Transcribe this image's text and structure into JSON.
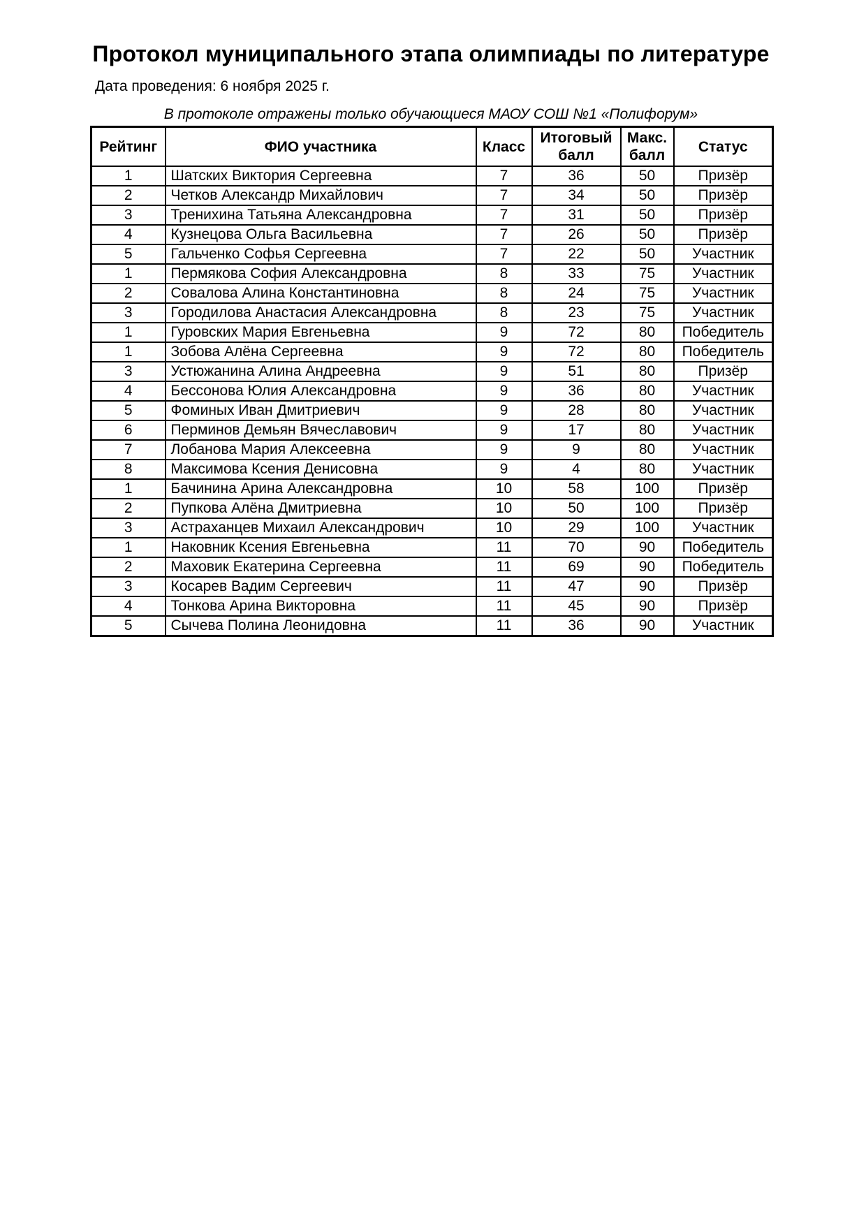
{
  "page": {
    "title": "Протокол муниципального этапа олимпиады по литературе",
    "date_line": "Дата проведения: 6 ноября 2025 г.",
    "note": "В протоколе отражены только обучающиеся МАОУ СОШ №1 «Полифорум»"
  },
  "table": {
    "columns": [
      "Рейтинг",
      "ФИО участника",
      "Класс",
      "Итоговый балл",
      "Макс. балл",
      "Статус"
    ],
    "rows": [
      [
        "1",
        "Шатских Виктория Сергеевна",
        "7",
        "36",
        "50",
        "Призёр"
      ],
      [
        "2",
        "Четков Александр Михайлович",
        "7",
        "34",
        "50",
        "Призёр"
      ],
      [
        "3",
        "Тренихина Татьяна Александровна",
        "7",
        "31",
        "50",
        "Призёр"
      ],
      [
        "4",
        "Кузнецова Ольга Васильевна",
        "7",
        "26",
        "50",
        "Призёр"
      ],
      [
        "5",
        "Гальченко Софья Сергеевна",
        "7",
        "22",
        "50",
        "Участник"
      ],
      [
        "1",
        "Пермякова София Александровна",
        "8",
        "33",
        "75",
        "Участник"
      ],
      [
        "2",
        "Совалова Алина Константиновна",
        "8",
        "24",
        "75",
        "Участник"
      ],
      [
        "3",
        "Городилова Анастасия Александровна",
        "8",
        "23",
        "75",
        "Участник"
      ],
      [
        "1",
        "Гуровских Мария Евгеньевна",
        "9",
        "72",
        "80",
        "Победитель"
      ],
      [
        "1",
        "Зобова Алёна Сергеевна",
        "9",
        "72",
        "80",
        "Победитель"
      ],
      [
        "3",
        "Устюжанина Алина Андреевна",
        "9",
        "51",
        "80",
        "Призёр"
      ],
      [
        "4",
        "Бессонова Юлия Александровна",
        "9",
        "36",
        "80",
        "Участник"
      ],
      [
        "5",
        "Фоминых Иван Дмитриевич",
        "9",
        "28",
        "80",
        "Участник"
      ],
      [
        "6",
        "Перминов Демьян Вячеславович",
        "9",
        "17",
        "80",
        "Участник"
      ],
      [
        "7",
        "Лобанова Мария Алексеевна",
        "9",
        "9",
        "80",
        "Участник"
      ],
      [
        "8",
        "Максимова Ксения Денисовна",
        "9",
        "4",
        "80",
        "Участник"
      ],
      [
        "1",
        "Бачинина Арина Александровна",
        "10",
        "58",
        "100",
        "Призёр"
      ],
      [
        "2",
        "Пупкова Алёна Дмитриевна",
        "10",
        "50",
        "100",
        "Призёр"
      ],
      [
        "3",
        "Астраханцев Михаил Александрович",
        "10",
        "29",
        "100",
        "Участник"
      ],
      [
        "1",
        "Наковник Ксения Евгеньевна",
        "11",
        "70",
        "90",
        "Победитель"
      ],
      [
        "2",
        "Маховик Екатерина Сергеевна",
        "11",
        "69",
        "90",
        "Победитель"
      ],
      [
        "3",
        "Косарев Вадим Сергеевич",
        "11",
        "47",
        "90",
        "Призёр"
      ],
      [
        "4",
        "Тонкова Арина Викторовна",
        "11",
        "45",
        "90",
        "Призёр"
      ],
      [
        "5",
        "Сычева Полина Леонидовна",
        "11",
        "36",
        "90",
        "Участник"
      ]
    ]
  },
  "colors": {
    "text": "#000000",
    "border": "#000000",
    "background": "#ffffff"
  }
}
